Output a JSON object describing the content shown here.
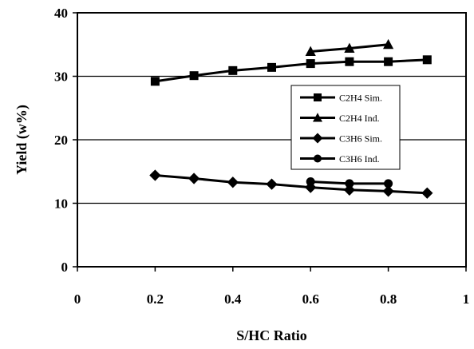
{
  "chart_data": {
    "type": "line",
    "xlabel": "S/HC Ratio",
    "ylabel": "Yield (w%)",
    "xlim": [
      0,
      1
    ],
    "ylim": [
      0,
      40
    ],
    "xticks": [
      0,
      0.2,
      0.4,
      0.6,
      0.8,
      1
    ],
    "xtick_labels": [
      "0",
      "0.2",
      "0.4",
      "0.6",
      "0.8",
      "1"
    ],
    "yticks": [
      0,
      10,
      20,
      30,
      40
    ],
    "ytick_labels": [
      "0",
      "10",
      "20",
      "30",
      "40"
    ],
    "grid": "horizontal",
    "legend_position": "right-center",
    "series": [
      {
        "name": "C2H4 Sim.",
        "marker": "square",
        "x": [
          0.2,
          0.3,
          0.4,
          0.5,
          0.6,
          0.7,
          0.8,
          0.9
        ],
        "y": [
          29.2,
          30.1,
          30.9,
          31.4,
          32.0,
          32.3,
          32.3,
          32.6
        ]
      },
      {
        "name": "C2H4 Ind.",
        "marker": "triangle",
        "x": [
          0.6,
          0.7,
          0.8
        ],
        "y": [
          33.9,
          34.4,
          35.0
        ]
      },
      {
        "name": "C3H6 Sim.",
        "marker": "diamond",
        "x": [
          0.2,
          0.3,
          0.4,
          0.5,
          0.6,
          0.7,
          0.8,
          0.9
        ],
        "y": [
          14.4,
          13.9,
          13.3,
          13.0,
          12.5,
          12.1,
          11.9,
          11.6
        ]
      },
      {
        "name": "C3H6 Ind.",
        "marker": "circle",
        "x": [
          0.6,
          0.7,
          0.8
        ],
        "y": [
          13.4,
          13.1,
          13.1
        ]
      }
    ]
  }
}
